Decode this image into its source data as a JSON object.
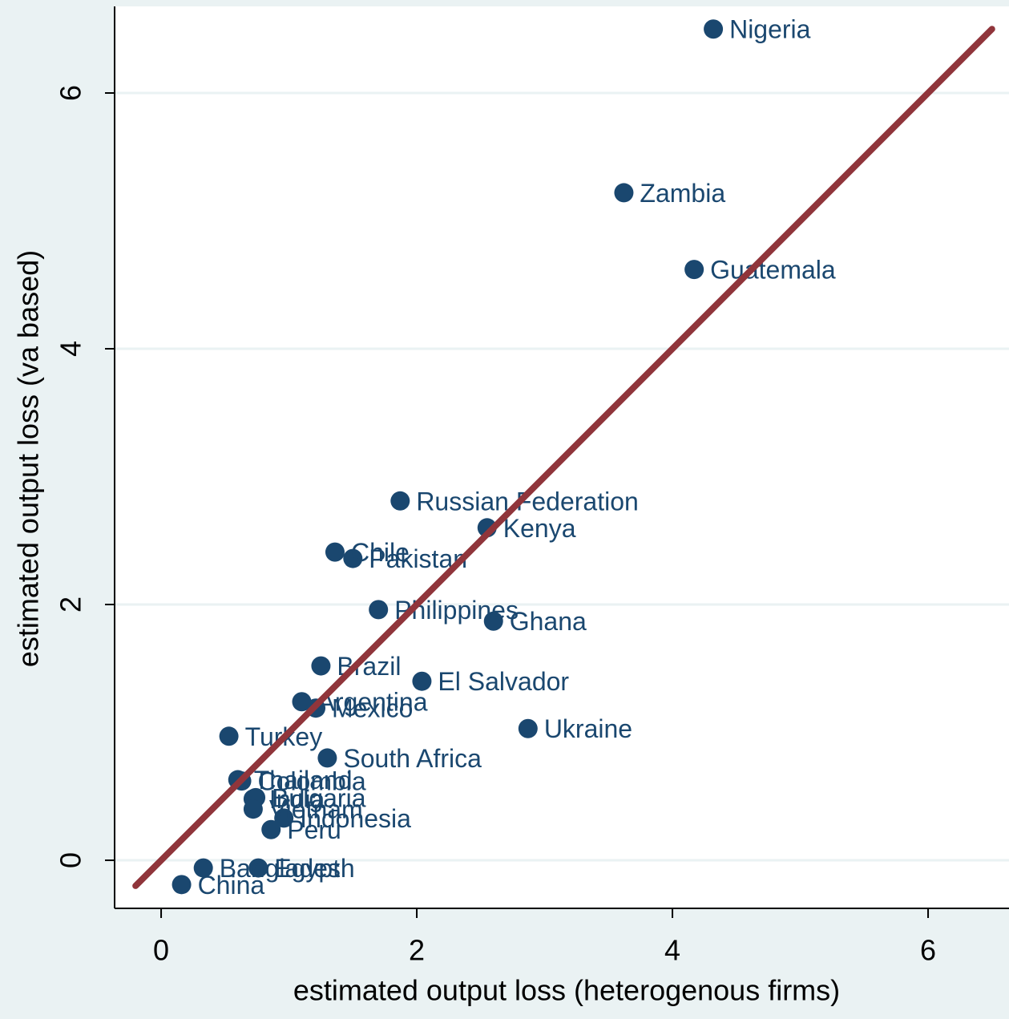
{
  "chart_data": {
    "type": "scatter",
    "x_label": "estimated output loss (heterogenous firms)",
    "y_label": "estimated output loss (va based)",
    "xlim": [
      -0.364,
      6.633
    ],
    "ylim": [
      -0.376,
      6.677
    ],
    "xticks": [
      0,
      2,
      4,
      6
    ],
    "yticks": [
      0,
      2,
      4,
      6
    ],
    "grid": true,
    "color": "#1a476f",
    "points": {
      "labels": [
        "Nigeria",
        "Zambia",
        "Guatemala",
        "Russian Federation",
        "Kenya",
        "Chile",
        "Pakistan",
        "Philippines",
        "Ghana",
        "Brazil",
        "El Salvador",
        "Argentina",
        "Mexico",
        "Ukraine",
        "Turkey",
        "South Africa",
        "Thailand",
        "Colombia",
        "Bulgaria",
        "India",
        "Vietnam",
        "Indonesia",
        "Peru",
        "Bangladesh",
        "Egypt",
        "China"
      ],
      "x": [
        4.32,
        3.62,
        4.17,
        1.87,
        2.55,
        1.36,
        1.5,
        1.7,
        2.6,
        1.25,
        2.04,
        1.1,
        1.21,
        2.87,
        0.53,
        1.3,
        0.6,
        0.63,
        0.74,
        0.72,
        0.72,
        0.96,
        0.86,
        0.33,
        0.76,
        0.16
      ],
      "y": [
        6.5,
        5.22,
        4.62,
        2.81,
        2.6,
        2.41,
        2.36,
        1.96,
        1.87,
        1.52,
        1.4,
        1.24,
        1.19,
        1.03,
        0.97,
        0.8,
        0.63,
        0.62,
        0.49,
        0.48,
        0.4,
        0.33,
        0.24,
        -0.06,
        -0.06,
        -0.19
      ]
    },
    "reference_line": {
      "x": [
        -0.2,
        6.5
      ],
      "y": [
        -0.2,
        6.5
      ],
      "color": "#90353b"
    }
  }
}
